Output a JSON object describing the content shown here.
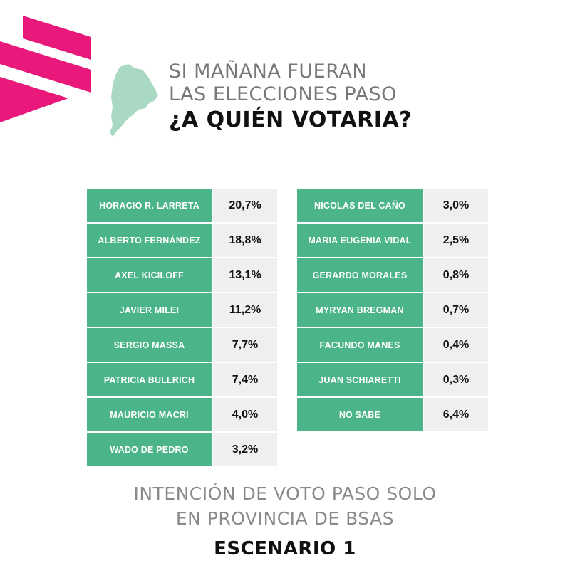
{
  "header": {
    "line1": "SI MAÑANA FUERAN",
    "line2": "LAS ELECCIONES PASO",
    "question": "¿A QUIÉN VOTARIA?"
  },
  "colors": {
    "accent": "#e8197a",
    "green": "#4cb489",
    "map": "#a9d9c2",
    "cell": "#efefef"
  },
  "candidates_left": [
    {
      "name": "HORACIO R. LARRETA",
      "value": "20,7%"
    },
    {
      "name": "ALBERTO FERNÁNDEZ",
      "value": "18,8%"
    },
    {
      "name": "AXEL KICILOFF",
      "value": "13,1%"
    },
    {
      "name": "JAVIER MILEI",
      "value": "11,2%"
    },
    {
      "name": "SERGIO MASSA",
      "value": "7,7%"
    },
    {
      "name": "PATRICIA BULLRICH",
      "value": "7,4%"
    },
    {
      "name": "MAURICIO MACRI",
      "value": "4,0%"
    },
    {
      "name": "WADO DE PEDRO",
      "value": "3,2%"
    }
  ],
  "candidates_right": [
    {
      "name": "NICOLAS DEL CAÑO",
      "value": "3,0%"
    },
    {
      "name": "MARIA EUGENIA VIDAL",
      "value": "2,5%"
    },
    {
      "name": "GERARDO MORALES",
      "value": "0,8%"
    },
    {
      "name": "MYRYAN BREGMAN",
      "value": "0,7%"
    },
    {
      "name": "FACUNDO MANES",
      "value": "0,4%"
    },
    {
      "name": "JUAN SCHIARETTI",
      "value": "0,3%"
    },
    {
      "name": "NO SABE",
      "value": "6,4%"
    }
  ],
  "footer": {
    "line1": "INTENCIÓN DE VOTO PASO SOLO",
    "line2": "EN PROVINCIA DE BSAS",
    "scenario": "ESCENARIO 1"
  }
}
